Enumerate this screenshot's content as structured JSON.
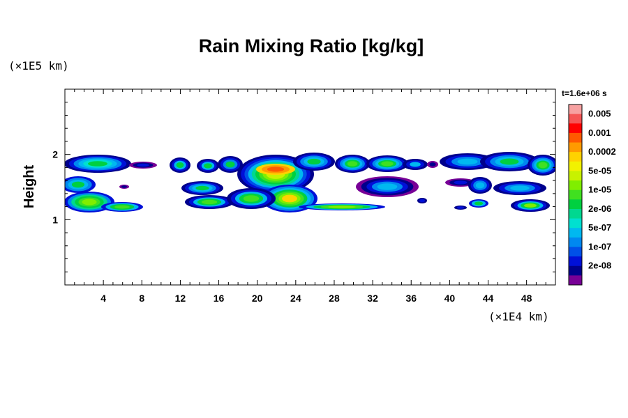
{
  "chart_data": {
    "type": "heatmap",
    "title": "Rain Mixing Ratio [kg/kg]",
    "ylabel": "Height",
    "xlabel": "",
    "x_unit": "(×1E4 km)",
    "y_unit": "(×1E5 km)",
    "time_label": "t=1.6e+06 s",
    "xlim": [
      0,
      51
    ],
    "ylim": [
      0,
      3
    ],
    "x_ticks": [
      4,
      8,
      12,
      16,
      20,
      24,
      28,
      32,
      36,
      40,
      44,
      48
    ],
    "x_tick_labels": [
      "4",
      "8",
      "12",
      "16",
      "20",
      "24",
      "28",
      "32",
      "36",
      "40",
      "44",
      "48"
    ],
    "y_ticks": [
      1,
      2
    ],
    "y_tick_labels": [
      "1",
      "2"
    ],
    "colorbar": {
      "labels": [
        "0.005",
        "0.001",
        "0.0002",
        "5e-05",
        "1e-05",
        "2e-06",
        "5e-07",
        "1e-07",
        "2e-08"
      ],
      "colors": [
        "#f7a1a1",
        "#f55555",
        "#ff0000",
        "#ff5a00",
        "#ff9a00",
        "#ffd200",
        "#f2f200",
        "#c8f200",
        "#80ee00",
        "#40e020",
        "#00d040",
        "#00d890",
        "#00e0d0",
        "#00b8f0",
        "#0088f0",
        "#0050e8",
        "#0010d8",
        "#00008c",
        "#780096"
      ]
    },
    "regions": [
      {
        "x": [
          0,
          8
        ],
        "y": [
          1.1,
          2.0
        ],
        "level": "1e-05"
      },
      {
        "x": [
          8.3,
          10
        ],
        "y": [
          1.8,
          1.9
        ],
        "level": "2e-08"
      },
      {
        "x": [
          11,
          23
        ],
        "y": [
          1.1,
          2.0
        ],
        "level": "5e-05"
      },
      {
        "x": [
          23,
          30
        ],
        "y": [
          1.75,
          2.0
        ],
        "level": "1e-05"
      },
      {
        "x": [
          20,
          25
        ],
        "y": [
          1.75,
          1.9
        ],
        "level": "0.0002"
      },
      {
        "x": [
          25,
          33
        ],
        "y": [
          1.17,
          1.22
        ],
        "level": "1e-05"
      },
      {
        "x": [
          30,
          37
        ],
        "y": [
          1.45,
          1.62
        ],
        "level": "1e-07"
      },
      {
        "x": [
          38,
          51
        ],
        "y": [
          1.75,
          2.0
        ],
        "level": "1e-05"
      },
      {
        "x": [
          42,
          51
        ],
        "y": [
          1.1,
          1.7
        ],
        "level": "5e-07"
      }
    ]
  }
}
